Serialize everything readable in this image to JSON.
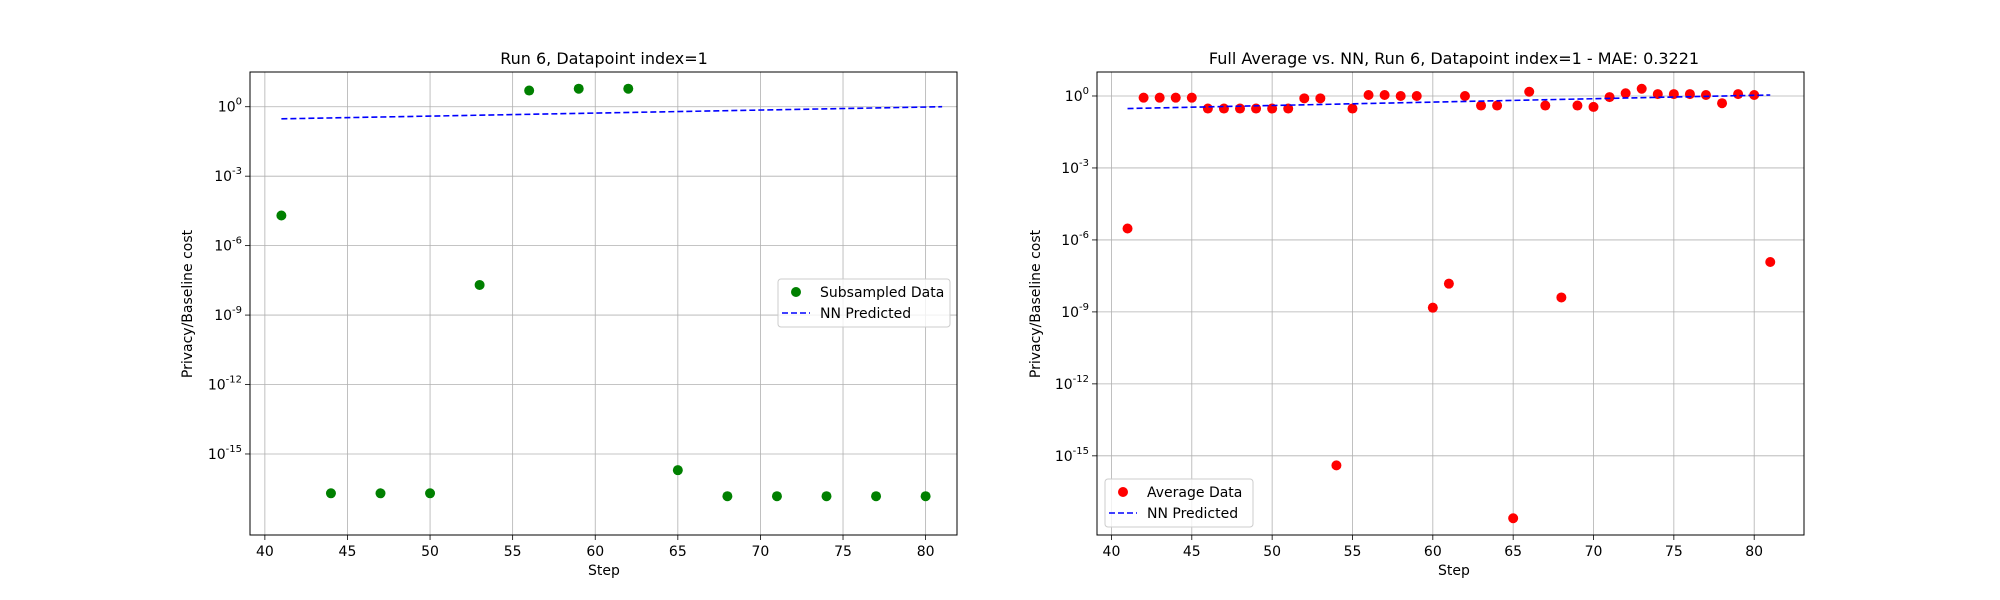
{
  "chart_data": [
    {
      "type": "scatter",
      "title": "Run 6, Datapoint index=1",
      "xlabel": "Step",
      "ylabel": "Privacy/Baseline cost",
      "xlim": [
        39.1,
        81.9
      ],
      "ylim_log10": [
        -18.5,
        1.5
      ],
      "yscale": "log",
      "grid": true,
      "legend_position": "center-right",
      "x_ticks": [
        40,
        45,
        50,
        55,
        60,
        65,
        70,
        75,
        80
      ],
      "y_ticks": [
        {
          "exp": 0,
          "label": "10^0"
        },
        {
          "exp": -3,
          "label": "10^-3"
        },
        {
          "exp": -6,
          "label": "10^-6"
        },
        {
          "exp": -9,
          "label": "10^-9"
        },
        {
          "exp": -12,
          "label": "10^-12"
        },
        {
          "exp": -15,
          "label": "10^-15"
        }
      ],
      "series": [
        {
          "name": "Subsampled Data",
          "kind": "scatter",
          "color": "#008000",
          "points": [
            {
              "x": 41,
              "y": 2e-05
            },
            {
              "x": 44,
              "y": 2e-17
            },
            {
              "x": 47,
              "y": 2e-17
            },
            {
              "x": 50,
              "y": 2e-17
            },
            {
              "x": 53,
              "y": 2e-08
            },
            {
              "x": 56,
              "y": 5
            },
            {
              "x": 59,
              "y": 6
            },
            {
              "x": 62,
              "y": 6
            },
            {
              "x": 65,
              "y": 2e-16
            },
            {
              "x": 68,
              "y": 1.5e-17
            },
            {
              "x": 71,
              "y": 1.5e-17
            },
            {
              "x": 74,
              "y": 1.5e-17
            },
            {
              "x": 77,
              "y": 1.5e-17
            },
            {
              "x": 80,
              "y": 1.5e-17
            }
          ]
        },
        {
          "name": "NN Predicted",
          "kind": "dashed-line",
          "color": "#0000ff",
          "points": [
            {
              "x": 41,
              "y": 0.3
            },
            {
              "x": 81,
              "y": 1.0
            }
          ]
        }
      ]
    },
    {
      "type": "scatter",
      "title": "Full Average vs. NN, Run 6, Datapoint index=1 - MAE: 0.3221",
      "xlabel": "Step",
      "ylabel": "Privacy/Baseline cost",
      "xlim": [
        39.1,
        83.1
      ],
      "ylim_log10": [
        -18.3,
        1.0
      ],
      "yscale": "log",
      "grid": true,
      "legend_position": "lower-left",
      "x_ticks": [
        40,
        45,
        50,
        55,
        60,
        65,
        70,
        75,
        80
      ],
      "y_ticks": [
        {
          "exp": 0,
          "label": "10^0"
        },
        {
          "exp": -3,
          "label": "10^-3"
        },
        {
          "exp": -6,
          "label": "10^-6"
        },
        {
          "exp": -9,
          "label": "10^-9"
        },
        {
          "exp": -12,
          "label": "10^-12"
        },
        {
          "exp": -15,
          "label": "10^-15"
        }
      ],
      "series": [
        {
          "name": "Average Data",
          "kind": "scatter",
          "color": "#ff0000",
          "points": [
            {
              "x": 41,
              "y": 3e-06
            },
            {
              "x": 42,
              "y": 0.85
            },
            {
              "x": 43,
              "y": 0.85
            },
            {
              "x": 44,
              "y": 0.85
            },
            {
              "x": 45,
              "y": 0.85
            },
            {
              "x": 46,
              "y": 0.3
            },
            {
              "x": 47,
              "y": 0.3
            },
            {
              "x": 48,
              "y": 0.3
            },
            {
              "x": 49,
              "y": 0.3
            },
            {
              "x": 50,
              "y": 0.3
            },
            {
              "x": 51,
              "y": 0.3
            },
            {
              "x": 52,
              "y": 0.8
            },
            {
              "x": 53,
              "y": 0.8
            },
            {
              "x": 54,
              "y": 4e-16
            },
            {
              "x": 55,
              "y": 0.3
            },
            {
              "x": 56,
              "y": 1.1
            },
            {
              "x": 57,
              "y": 1.1
            },
            {
              "x": 58,
              "y": 1.0
            },
            {
              "x": 59,
              "y": 1.0
            },
            {
              "x": 60,
              "y": 1.5e-09
            },
            {
              "x": 61,
              "y": 1.5e-08
            },
            {
              "x": 62,
              "y": 1.0
            },
            {
              "x": 63,
              "y": 0.4
            },
            {
              "x": 64,
              "y": 0.4
            },
            {
              "x": 65,
              "y": 2.5e-18
            },
            {
              "x": 66,
              "y": 1.5
            },
            {
              "x": 67,
              "y": 0.4
            },
            {
              "x": 68,
              "y": 4e-09
            },
            {
              "x": 69,
              "y": 0.4
            },
            {
              "x": 70,
              "y": 0.35
            },
            {
              "x": 71,
              "y": 0.9
            },
            {
              "x": 72,
              "y": 1.3
            },
            {
              "x": 73,
              "y": 2.0
            },
            {
              "x": 74,
              "y": 1.2
            },
            {
              "x": 75,
              "y": 1.2
            },
            {
              "x": 76,
              "y": 1.2
            },
            {
              "x": 77,
              "y": 1.1
            },
            {
              "x": 78,
              "y": 0.5
            },
            {
              "x": 79,
              "y": 1.2
            },
            {
              "x": 80,
              "y": 1.1
            },
            {
              "x": 81,
              "y": 1.2e-07
            }
          ]
        },
        {
          "name": "NN Predicted",
          "kind": "dashed-line",
          "color": "#0000ff",
          "points": [
            {
              "x": 41,
              "y": 0.3
            },
            {
              "x": 81,
              "y": 1.1
            }
          ]
        }
      ]
    }
  ]
}
